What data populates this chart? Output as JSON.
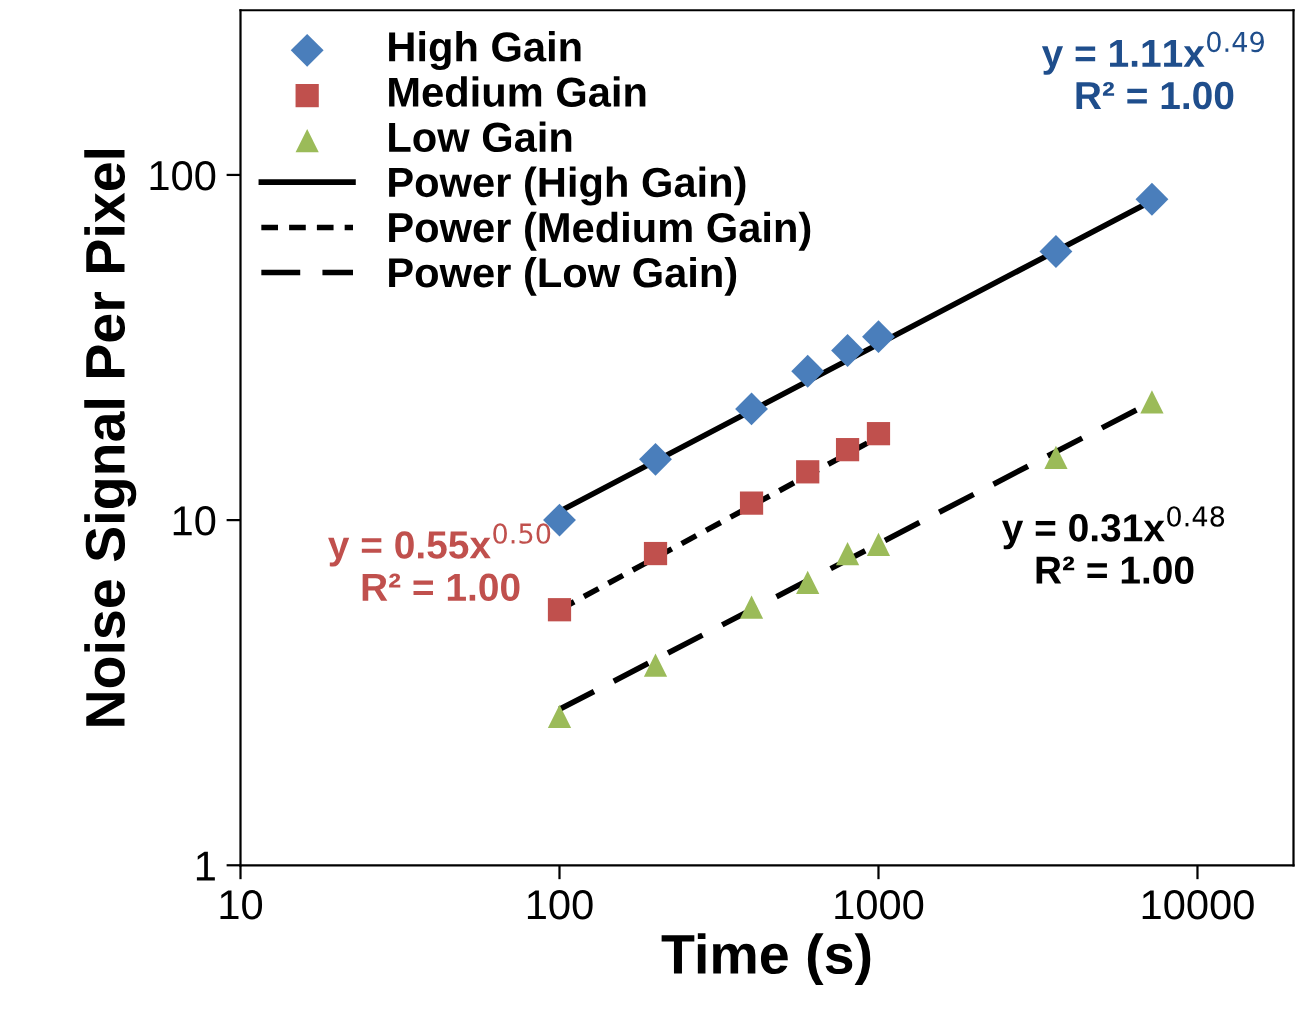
{
  "chart_data": {
    "type": "scatter",
    "xlabel": "Time (s)",
    "ylabel": "Noise Signal Per Pixel",
    "log": "xy",
    "xlim": [
      10,
      20000
    ],
    "ylim": [
      1,
      300
    ],
    "xticks": [
      10,
      100,
      1000,
      10000
    ],
    "yticks": [
      1,
      10,
      100
    ],
    "grid": false,
    "legend": "top left",
    "series": [
      {
        "name": "High Gain",
        "marker": "diamond",
        "color": "#4a7ebb",
        "x": [
          100,
          200,
          400,
          600,
          800,
          1000,
          3600,
          7200
        ],
        "values": [
          10,
          15,
          21,
          27,
          31,
          34,
          60,
          85
        ]
      },
      {
        "name": "Medium Gain",
        "marker": "square",
        "color": "#c0504d",
        "x": [
          100,
          200,
          400,
          600,
          800,
          1000
        ],
        "values": [
          5.5,
          8,
          11.2,
          13.8,
          16,
          17.8
        ]
      },
      {
        "name": "Low Gain",
        "marker": "triangle",
        "color": "#9bbb59",
        "x": [
          100,
          200,
          400,
          600,
          800,
          1000,
          3600,
          7200
        ],
        "values": [
          2.7,
          3.8,
          5.6,
          6.6,
          8,
          8.5,
          15.2,
          22
        ]
      },
      {
        "name": "Power (High Gain)",
        "type": "line",
        "line_style": "solid",
        "color": "#000000",
        "x": [
          100,
          7200
        ],
        "values": [
          10.6,
          84.2
        ]
      },
      {
        "name": "Power (Medium Gain)",
        "type": "line",
        "line_style": "dotted",
        "color": "#000000",
        "x": [
          100,
          1000
        ],
        "values": [
          5.5,
          17.4
        ]
      },
      {
        "name": "Power (Low Gain)",
        "type": "line",
        "line_style": "dashed",
        "color": "#000000",
        "x": [
          100,
          7200
        ],
        "values": [
          2.83,
          22.0
        ]
      }
    ],
    "annotations": [
      "y = 1.11x$^{0.49}$\nR² = 1.00",
      "y = 0.55x$^{0.50}$\nR² = 1.00",
      "y = 0.31x$^{0.48}$\nR² = 1.00"
    ]
  }
}
